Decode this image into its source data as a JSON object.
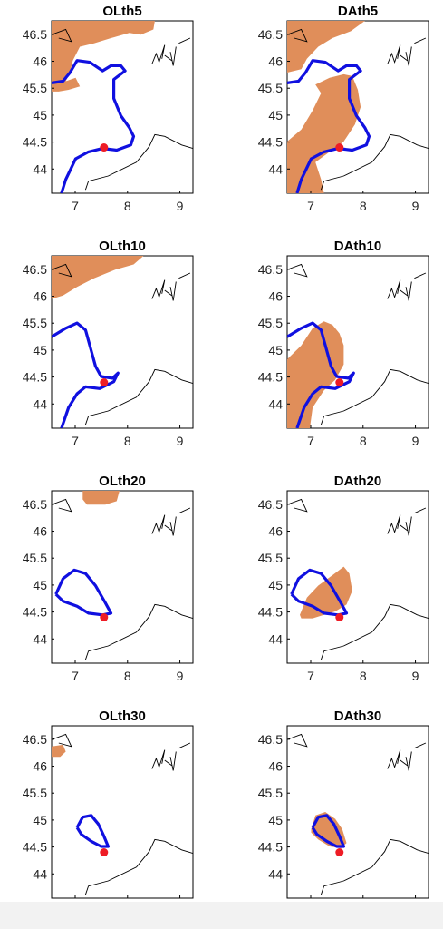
{
  "colors": {
    "patch": "#e08e5a",
    "contour": "#1010e0",
    "point": "#ee1c25",
    "coast": "#000000"
  },
  "chart_data": [
    {
      "type": "map",
      "title": "OLth5",
      "xlim": [
        6.55,
        9.25
      ],
      "ylim": [
        43.55,
        46.75
      ],
      "xticks": [
        "7",
        "8",
        "9"
      ],
      "yticks": [
        "44",
        "44.5",
        "45",
        "45.5",
        "46",
        "46.5"
      ],
      "point": [
        7.55,
        44.4
      ]
    },
    {
      "type": "map",
      "title": "DAth5",
      "xlim": [
        6.55,
        9.25
      ],
      "ylim": [
        43.55,
        46.75
      ],
      "xticks": [
        "7",
        "8",
        "9"
      ],
      "yticks": [
        "44",
        "44.5",
        "45",
        "45.5",
        "46",
        "46.5"
      ],
      "point": [
        7.55,
        44.4
      ]
    },
    {
      "type": "map",
      "title": "OLth10",
      "xlim": [
        6.55,
        9.25
      ],
      "ylim": [
        43.55,
        46.75
      ],
      "xticks": [
        "7",
        "8",
        "9"
      ],
      "yticks": [
        "44",
        "44.5",
        "45",
        "45.5",
        "46",
        "46.5"
      ],
      "point": [
        7.55,
        44.4
      ]
    },
    {
      "type": "map",
      "title": "DAth10",
      "xlim": [
        6.55,
        9.25
      ],
      "ylim": [
        43.55,
        46.75
      ],
      "xticks": [
        "7",
        "8",
        "9"
      ],
      "yticks": [
        "44",
        "44.5",
        "45",
        "45.5",
        "46",
        "46.5"
      ],
      "point": [
        7.55,
        44.4
      ]
    },
    {
      "type": "map",
      "title": "OLth20",
      "xlim": [
        6.55,
        9.25
      ],
      "ylim": [
        43.55,
        46.75
      ],
      "xticks": [
        "7",
        "8",
        "9"
      ],
      "yticks": [
        "44",
        "44.5",
        "45",
        "45.5",
        "46",
        "46.5"
      ],
      "point": [
        7.55,
        44.4
      ]
    },
    {
      "type": "map",
      "title": "DAth20",
      "xlim": [
        6.55,
        9.25
      ],
      "ylim": [
        43.55,
        46.75
      ],
      "xticks": [
        "7",
        "8",
        "9"
      ],
      "yticks": [
        "44",
        "44.5",
        "45",
        "45.5",
        "46",
        "46.5"
      ],
      "point": [
        7.55,
        44.4
      ]
    },
    {
      "type": "map",
      "title": "OLth30",
      "xlim": [
        6.55,
        9.25
      ],
      "ylim": [
        43.55,
        46.75
      ],
      "xticks": [
        "7",
        "8",
        "9"
      ],
      "yticks": [
        "44",
        "44.5",
        "45",
        "45.5",
        "46",
        "46.5"
      ],
      "point": [
        7.55,
        44.4
      ]
    },
    {
      "type": "map",
      "title": "DAth30",
      "xlim": [
        6.55,
        9.25
      ],
      "ylim": [
        43.55,
        46.75
      ],
      "xticks": [
        "7",
        "8",
        "9"
      ],
      "yticks": [
        "44",
        "44.5",
        "45",
        "45.5",
        "46",
        "46.5"
      ],
      "point": [
        7.55,
        44.4
      ]
    }
  ]
}
